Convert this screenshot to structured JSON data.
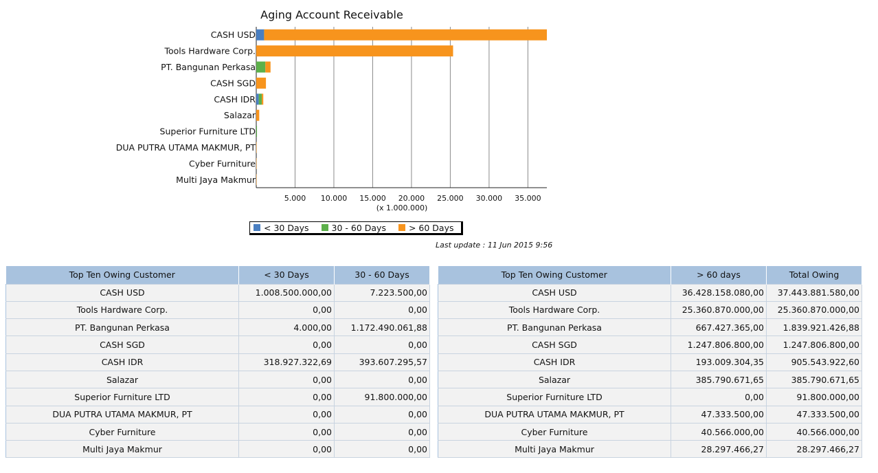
{
  "chart_data": {
    "type": "bar",
    "orientation": "horizontal",
    "stacked": true,
    "title": "Aging Account Receivable",
    "scale_note": "(x 1.000.000)",
    "categories": [
      "CASH USD",
      "Tools Hardware Corp.",
      "PT. Bangunan Perkasa",
      "CASH SGD",
      "CASH IDR",
      "Salazar",
      "Superior Furniture LTD",
      "DUA PUTRA UTAMA MAKMUR, PT",
      "Cyber Furniture",
      "Multi Jaya Makmur"
    ],
    "series": [
      {
        "name": "< 30 Days",
        "color": "#4a7fc1",
        "values": [
          1008.5,
          0,
          0.004,
          0,
          318.93,
          0,
          0,
          0,
          0,
          0
        ]
      },
      {
        "name": "30 - 60 Days",
        "color": "#5cb04a",
        "values": [
          7.22,
          0,
          1172.49,
          0,
          393.61,
          0,
          91.8,
          0,
          0,
          0
        ]
      },
      {
        "name": "> 60 Days",
        "color": "#f7941d",
        "values": [
          36428.16,
          25360.87,
          667.43,
          1247.81,
          193.01,
          385.79,
          0,
          47.33,
          40.57,
          28.3
        ]
      }
    ],
    "x_ticks": [
      5000,
      10000,
      15000,
      20000,
      25000,
      30000,
      35000
    ],
    "x_tick_labels": [
      "5.000",
      "10.000",
      "15.000",
      "20.000",
      "25.000",
      "30.000",
      "35.000"
    ],
    "xlim": [
      0,
      37443.88
    ],
    "grid": true,
    "legend_position": "bottom"
  },
  "legend": {
    "items": [
      {
        "label": "< 30 Days",
        "color": "#4a7fc1"
      },
      {
        "label": "30 - 60 Days",
        "color": "#5cb04a"
      },
      {
        "label": "> 60 Days",
        "color": "#f7941d"
      }
    ]
  },
  "last_update": "Last update : 11 Jun 2015 9:56",
  "table_left": {
    "headers": [
      "Top Ten Owing Customer",
      "< 30 Days",
      "30 - 60 Days"
    ],
    "rows": [
      [
        "CASH USD",
        "1.008.500.000,00",
        "7.223.500,00"
      ],
      [
        "Tools Hardware Corp.",
        "0,00",
        "0,00"
      ],
      [
        "PT. Bangunan Perkasa",
        "4.000,00",
        "1.172.490.061,88"
      ],
      [
        "CASH SGD",
        "0,00",
        "0,00"
      ],
      [
        "CASH IDR",
        "318.927.322,69",
        "393.607.295,57"
      ],
      [
        "Salazar",
        "0,00",
        "0,00"
      ],
      [
        "Superior Furniture LTD",
        "0,00",
        "91.800.000,00"
      ],
      [
        "DUA PUTRA UTAMA MAKMUR, PT",
        "0,00",
        "0,00"
      ],
      [
        "Cyber Furniture",
        "0,00",
        "0,00"
      ],
      [
        "Multi Jaya Makmur",
        "0,00",
        "0,00"
      ]
    ]
  },
  "table_right": {
    "headers": [
      "Top Ten Owing Customer",
      "> 60 days",
      "Total Owing"
    ],
    "rows": [
      [
        "CASH USD",
        "36.428.158.080,00",
        "37.443.881.580,00"
      ],
      [
        "Tools Hardware Corp.",
        "25.360.870.000,00",
        "25.360.870.000,00"
      ],
      [
        "PT. Bangunan Perkasa",
        "667.427.365,00",
        "1.839.921.426,88"
      ],
      [
        "CASH SGD",
        "1.247.806.800,00",
        "1.247.806.800,00"
      ],
      [
        "CASH IDR",
        "193.009.304,35",
        "905.543.922,60"
      ],
      [
        "Salazar",
        "385.790.671,65",
        "385.790.671,65"
      ],
      [
        "Superior Furniture LTD",
        "0,00",
        "91.800.000,00"
      ],
      [
        "DUA PUTRA UTAMA MAKMUR, PT",
        "47.333.500,00",
        "47.333.500,00"
      ],
      [
        "Cyber Furniture",
        "40.566.000,00",
        "40.566.000,00"
      ],
      [
        "Multi Jaya Makmur",
        "28.297.466,27",
        "28.297.466,27"
      ]
    ]
  }
}
